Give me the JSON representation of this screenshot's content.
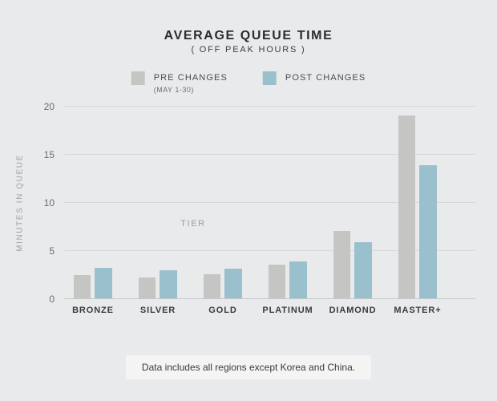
{
  "title": "AVERAGE QUEUE TIME",
  "subtitle": "( OFF PEAK HOURS )",
  "legend": {
    "pre_label": "PRE CHANGES",
    "pre_sublabel": "(MAY 1-30)",
    "post_label": "POST CHANGES"
  },
  "colors": {
    "background": "#e8eaec",
    "pre_bar": "#c5c6c3",
    "post_bar": "#9ac0cd",
    "gridline": "#d6d8da",
    "axis_line": "#c6c8ca"
  },
  "chart_data": {
    "type": "bar",
    "categories": [
      "BRONZE",
      "SILVER",
      "GOLD",
      "PLATINUM",
      "DIAMOND",
      "MASTER+"
    ],
    "series": [
      {
        "name": "PRE CHANGES (MAY 1-30)",
        "values": [
          2.4,
          2.2,
          2.5,
          3.5,
          7.0,
          19.0
        ]
      },
      {
        "name": "POST CHANGES",
        "values": [
          3.2,
          2.9,
          3.1,
          3.8,
          5.8,
          13.8
        ]
      }
    ],
    "title": "AVERAGE QUEUE TIME",
    "subtitle": "( OFF PEAK HOURS )",
    "xlabel": "TIER",
    "ylabel": "MINUTES IN QUEUE",
    "yticks": [
      0,
      5,
      10,
      15,
      20
    ],
    "ylim": [
      0,
      20
    ],
    "grid": true,
    "legend_position": "top"
  },
  "footnote": "Data includes all regions except Korea and China."
}
